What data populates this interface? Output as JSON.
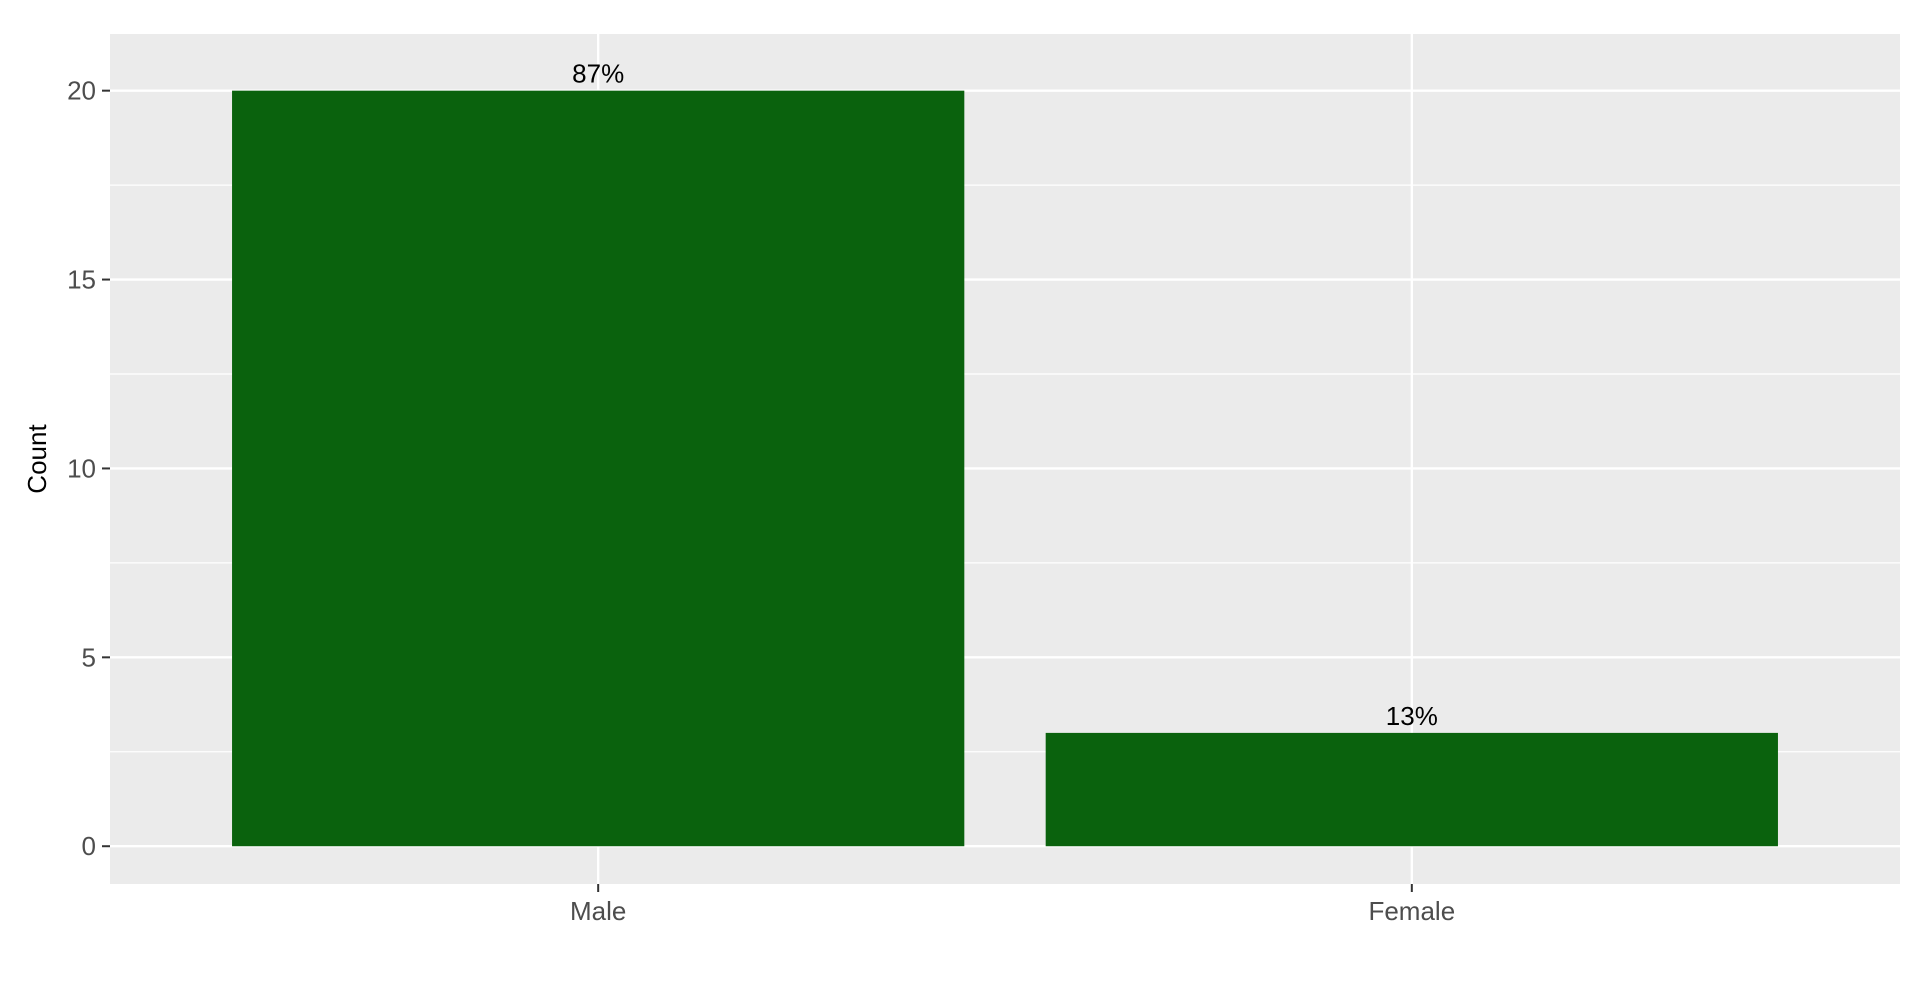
{
  "chart_data": {
    "type": "bar",
    "categories": [
      "Male",
      "Female"
    ],
    "values": [
      20,
      3
    ],
    "bar_labels": [
      "87%",
      "13%"
    ],
    "title": "",
    "xlabel": "",
    "ylabel": "Count",
    "ylim": [
      -1,
      21.5
    ],
    "yticks": [
      0,
      5,
      10,
      15,
      20
    ],
    "ytick_labels": [
      "0",
      "5",
      "10",
      "15",
      "20"
    ],
    "grid": true,
    "legend": "none",
    "colors": {
      "bar": "#0a620d",
      "panel": "#ebebeb",
      "grid": "#ffffff",
      "tick": "#333333"
    }
  }
}
